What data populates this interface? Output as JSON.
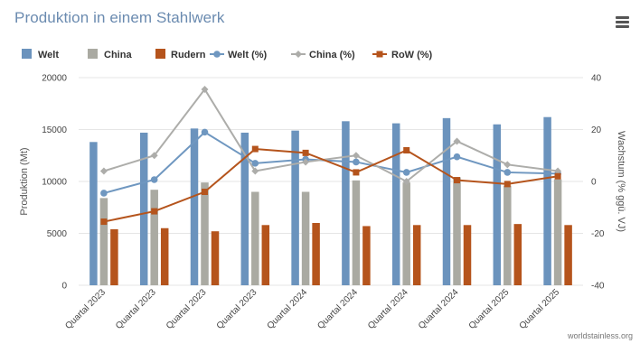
{
  "title": "Produktion in einem Stahlwerk",
  "credit": "worldstainless.org",
  "menu_icon": "hamburger-menu-icon",
  "colors": {
    "welt_bar": "#6b93bd",
    "china_bar": "#aaaaa2",
    "rudern_bar": "#b5541c",
    "welt_line": "#6f97c0",
    "china_line": "#adadaa",
    "row_line": "#b5541c",
    "title": "#6b8bb0",
    "grid": "#e6e6e6"
  },
  "chart_data": {
    "type": "bar",
    "categories": [
      "Quartal 2023",
      "Quartal 2023",
      "Quartal 2023",
      "Quartal 2023",
      "Quartal 2024",
      "Quartal 2024",
      "Quartal 2024",
      "Quartal 2024",
      "Quartal 2025",
      "Quartal 2025"
    ],
    "bar_series": [
      {
        "name": "Welt",
        "values": [
          13800,
          14700,
          15100,
          14700,
          14900,
          15800,
          15600,
          16100,
          15500,
          16200
        ]
      },
      {
        "name": "China",
        "values": [
          8400,
          9200,
          9900,
          9000,
          9000,
          10100,
          9900,
          10400,
          9600,
          10200
        ]
      },
      {
        "name": "Rudern",
        "values": [
          5400,
          5500,
          5200,
          5800,
          6000,
          5700,
          5800,
          5800,
          5900,
          5800
        ]
      }
    ],
    "line_series": [
      {
        "name": "Welt (%)",
        "marker": "circle",
        "values": [
          -4.5,
          0.7,
          19,
          7,
          8.5,
          7.5,
          3.5,
          9.5,
          3.5,
          3
        ]
      },
      {
        "name": "China (%)",
        "marker": "diamond",
        "values": [
          4,
          10,
          35.5,
          4,
          7.5,
          10,
          0,
          15.5,
          6.5,
          4
        ]
      },
      {
        "name": "RoW (%)",
        "marker": "square",
        "values": [
          -15.5,
          -11.5,
          -4,
          12.5,
          11,
          3.5,
          12,
          0.5,
          -1,
          2
        ]
      }
    ],
    "xlabel": "",
    "ylabel": "Produktion (Mt)",
    "y2label": "Wachstum (% ggü. VJ)",
    "ylim": [
      0,
      20000
    ],
    "y2lim": [
      -40,
      40
    ],
    "yticks": [
      "0",
      "5000",
      "10000",
      "15000",
      "20000"
    ],
    "y2ticks": [
      "-40",
      "-20",
      "0",
      "20",
      "40"
    ],
    "legend": [
      "Welt",
      "China",
      "Rudern",
      "Welt (%)",
      "China (%)",
      "RoW (%)"
    ],
    "legend_position": "top-left",
    "grid": true
  }
}
